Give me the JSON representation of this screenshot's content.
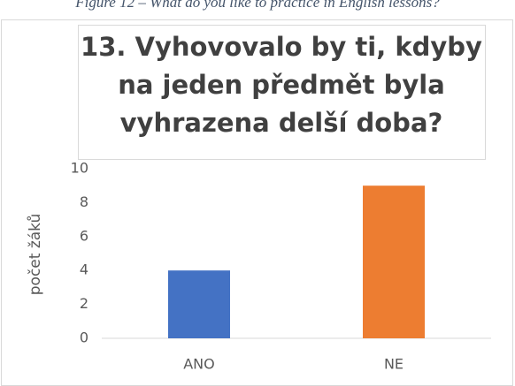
{
  "caption": "Figure 12 – What do you like to practice in English lessons?",
  "chart_data": {
    "type": "bar",
    "title": [
      "13. Vyhovovalo by ti, kdyby",
      "na jeden předmět byla",
      "vyhrazena delší doba?"
    ],
    "y_label": "počet žáků",
    "categories": [
      "ANO",
      "NE"
    ],
    "values": [
      4,
      9
    ],
    "colors": [
      "#4472c4",
      "#ed7d31"
    ],
    "ylim": [
      0,
      10
    ],
    "yticks": [
      0,
      2,
      4,
      6,
      8,
      10
    ],
    "grid": false
  }
}
